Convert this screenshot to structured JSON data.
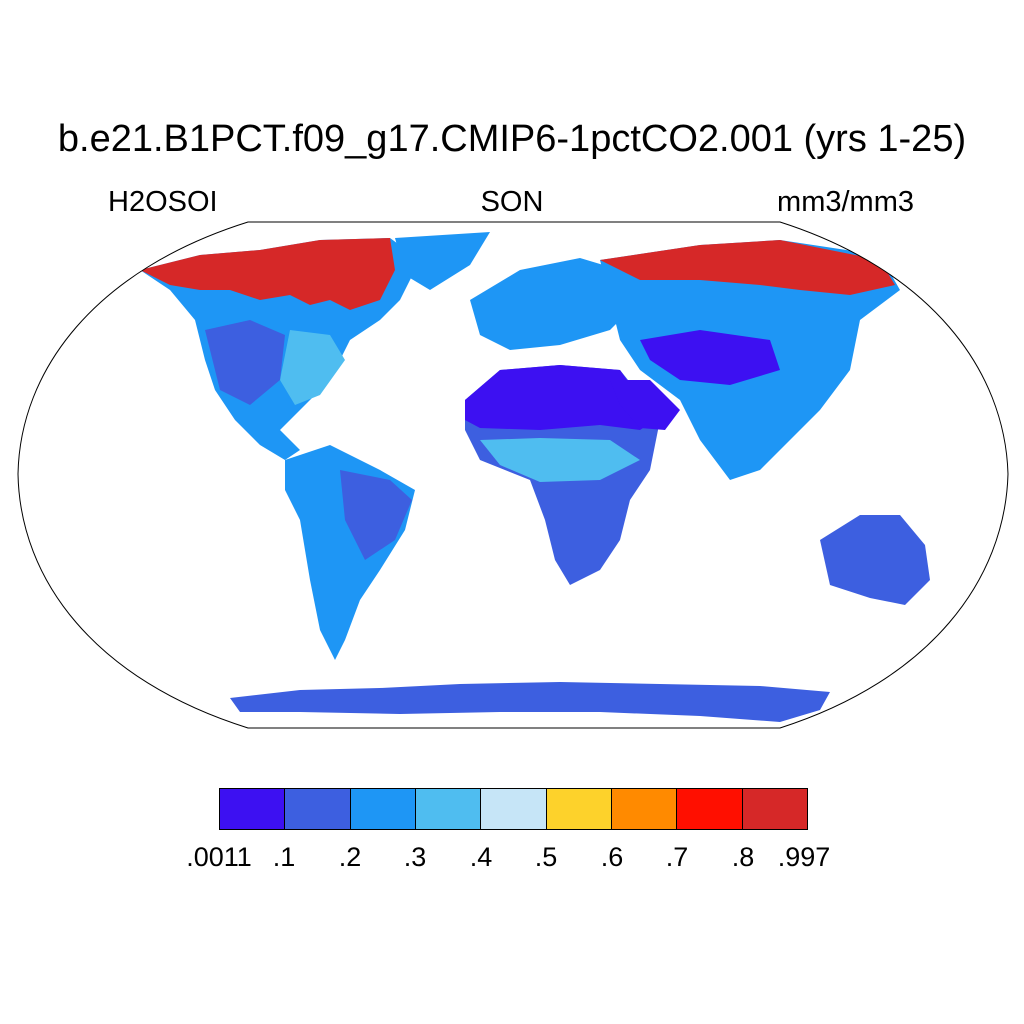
{
  "title": "b.e21.B1PCT.f09_g17.CMIP6-1pctCO2.001 (yrs 1-25)",
  "left_label": "H2OSOI",
  "center_label": "SON",
  "right_label": "mm3/mm3",
  "projection": "Robinson",
  "colorbar": {
    "colors": [
      "#3d10f2",
      "#3d5fe0",
      "#1e96f5",
      "#4fbdf0",
      "#c6e5f7",
      "#fdd22b",
      "#ff8a00",
      "#ff0f00",
      "#d62828"
    ],
    "labels": [
      ".0011",
      ".1",
      ".2",
      ".3",
      ".4",
      ".5",
      ".6",
      ".7",
      ".8",
      ".997"
    ]
  },
  "regions": [
    {
      "name": "Arctic Canada / Alaska",
      "value_class": 8
    },
    {
      "name": "Central North America",
      "value_class": 2
    },
    {
      "name": "Amazon",
      "value_class": 2
    },
    {
      "name": "Sahara / Arabia",
      "value_class": 0
    },
    {
      "name": "Sahel",
      "value_class": 3
    },
    {
      "name": "Southern Africa",
      "value_class": 1
    },
    {
      "name": "Siberia",
      "value_class": 8
    },
    {
      "name": "Central Asia",
      "value_class": 1
    },
    {
      "name": "Australia",
      "value_class": 1
    },
    {
      "name": "Antarctica coast",
      "value_class": 1
    }
  ]
}
